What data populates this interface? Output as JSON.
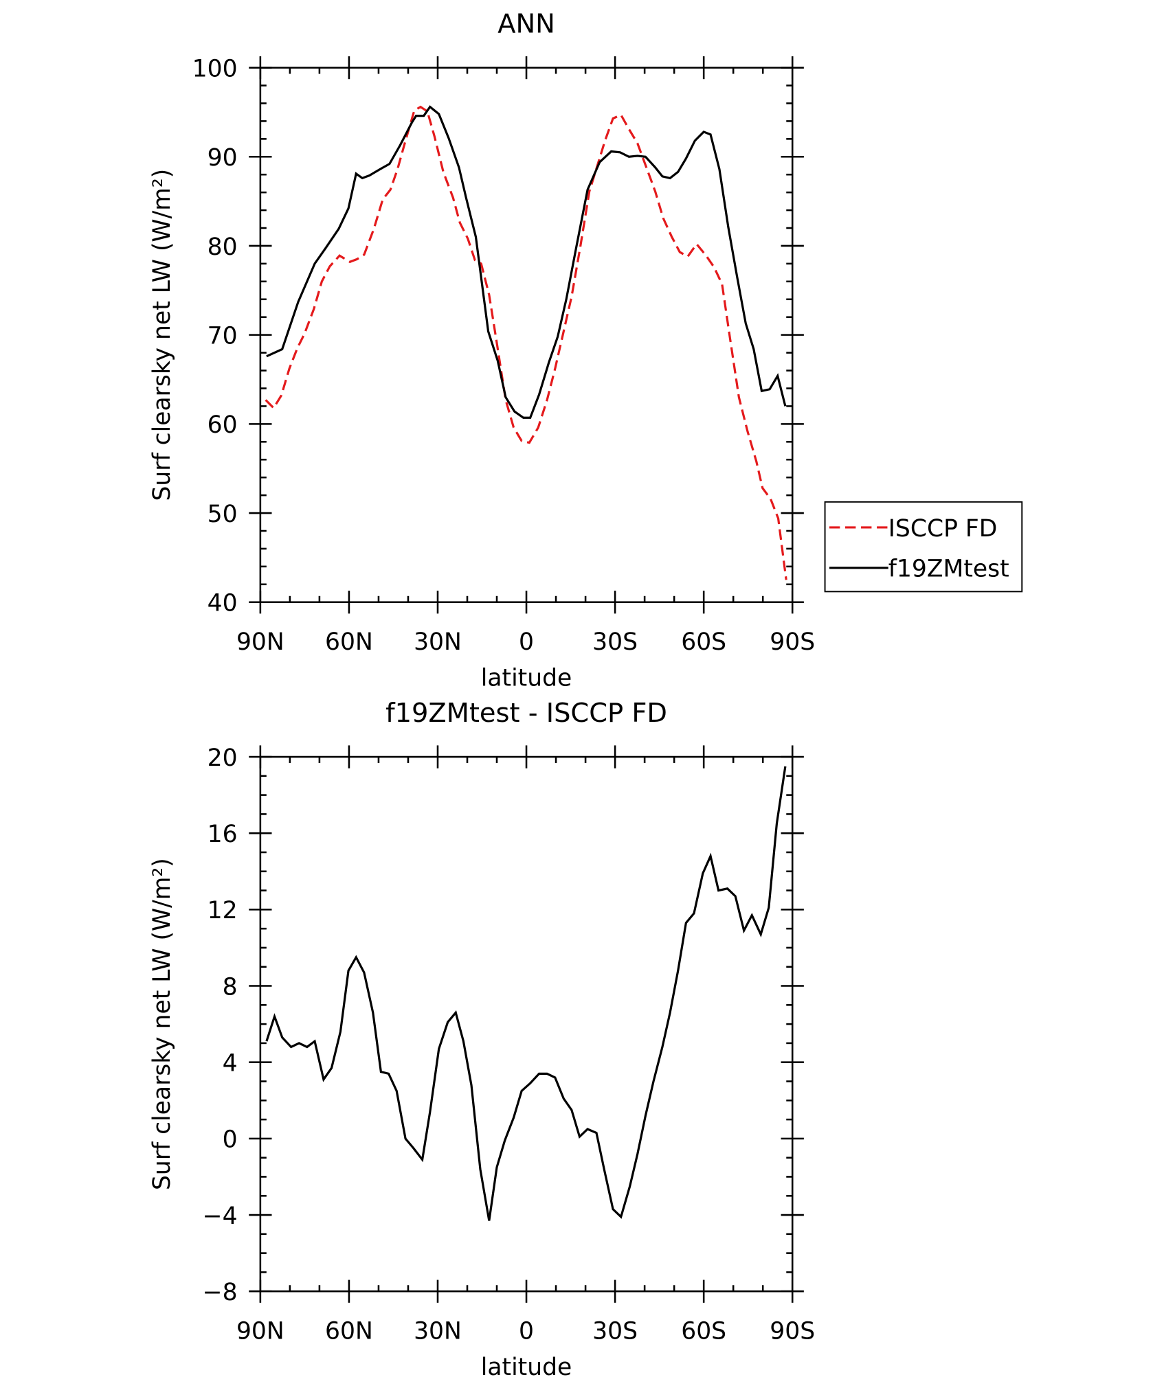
{
  "chart_data": [
    {
      "type": "line",
      "title": "ANN",
      "xlabel": "latitude",
      "ylabel": "Surf clearsky net LW (W/m²)",
      "xlim": [
        90,
        -90
      ],
      "xticks": [
        {
          "value": 90,
          "label": "90N"
        },
        {
          "value": 60,
          "label": "60N"
        },
        {
          "value": 30,
          "label": "30N"
        },
        0,
        {
          "value": -30,
          "label": "30S"
        },
        {
          "value": -60,
          "label": "60S"
        },
        {
          "value": -90,
          "label": "90S"
        }
      ],
      "ylim": [
        40,
        100
      ],
      "yticks": [
        40,
        50,
        60,
        70,
        80,
        90,
        100
      ],
      "legend": "right",
      "series": [
        {
          "name": "ISCCP FD",
          "color": "#e41a1c",
          "dash": true,
          "x": [
            88.2,
            85.5,
            82.9,
            80.2,
            77.5,
            75.1,
            71.9,
            69.2,
            66.5,
            63.2,
            59.7,
            57.3,
            54.9,
            51.6,
            48.6,
            46.0,
            43.6,
            40.9,
            37.9,
            35.8,
            33.5,
            31.1,
            28.1,
            24.8,
            22.5,
            19.8,
            17.4,
            15.3,
            12.6,
            10.0,
            7.0,
            4.3,
            1.6,
            -1.0,
            -4.0,
            -7.0,
            -9.7,
            -12.4,
            -15.3,
            -18.3,
            -21.3,
            -24.0,
            -26.6,
            -29.3,
            -32.0,
            -34.7,
            -37.6,
            -40.6,
            -43.6,
            -46.3,
            -49.2,
            -51.9,
            -54.6,
            -57.6,
            -60.8,
            -63.5,
            -66.2,
            -68.9,
            -71.9,
            -74.8,
            -77.8,
            -79.9,
            -82.6,
            -85.2,
            -87.9
          ],
          "values": [
            62.7,
            61.8,
            63.2,
            66.2,
            68.5,
            70.1,
            72.9,
            76.0,
            77.7,
            78.9,
            78.2,
            78.5,
            79.0,
            81.9,
            85.2,
            86.3,
            88.6,
            91.8,
            95.2,
            95.6,
            95.1,
            92.3,
            88.3,
            85.4,
            82.6,
            80.8,
            78.4,
            78.0,
            74.5,
            69.1,
            62.7,
            59.6,
            58.1,
            57.9,
            59.6,
            62.7,
            66.2,
            70.1,
            74.3,
            80.0,
            86.1,
            89.0,
            91.8,
            94.3,
            94.7,
            93.1,
            91.5,
            88.8,
            86.1,
            83.1,
            81.0,
            79.3,
            78.8,
            80.2,
            78.9,
            77.6,
            75.7,
            69.6,
            63.0,
            59.2,
            55.8,
            52.8,
            51.6,
            49.4,
            42.5
          ]
        },
        {
          "name": "f19ZMtest",
          "color": "#000000",
          "dash": false,
          "x": [
            87.9,
            82.6,
            77.2,
            71.6,
            68.0,
            63.5,
            60.2,
            57.6,
            55.5,
            53.1,
            49.5,
            46.3,
            42.7,
            38.8,
            37.3,
            34.7,
            32.6,
            29.6,
            26.3,
            22.8,
            20.4,
            17.1,
            12.9,
            9.7,
            7.0,
            4.0,
            1.0,
            -1.3,
            -4.3,
            -7.6,
            -10.6,
            -13.5,
            -16.8,
            -20.7,
            -24.8,
            -28.7,
            -31.7,
            -34.7,
            -37.6,
            -40.3,
            -43.6,
            -46.0,
            -48.6,
            -51.3,
            -54.0,
            -57.0,
            -60.0,
            -62.3,
            -65.3,
            -68.3,
            -71.3,
            -74.2,
            -76.9,
            -79.6,
            -82.3,
            -85.0,
            -87.6
          ],
          "values": [
            67.6,
            68.4,
            73.7,
            78.0,
            79.7,
            81.9,
            84.2,
            88.1,
            87.6,
            87.9,
            88.6,
            89.2,
            91.3,
            93.8,
            94.6,
            94.6,
            95.6,
            94.8,
            92.1,
            88.8,
            85.4,
            81.0,
            70.4,
            67.1,
            63.0,
            61.4,
            60.7,
            60.7,
            63.3,
            66.9,
            69.8,
            74.0,
            79.7,
            86.3,
            89.4,
            90.6,
            90.5,
            90.0,
            90.1,
            90.0,
            88.8,
            87.8,
            87.6,
            88.3,
            89.8,
            91.8,
            92.8,
            92.5,
            88.6,
            82.1,
            76.5,
            71.3,
            68.4,
            63.7,
            63.9,
            65.4,
            62.0
          ]
        }
      ]
    },
    {
      "type": "line",
      "title": "f19ZMtest - ISCCP FD",
      "xlabel": "latitude",
      "ylabel": "Surf clearsky net LW (W/m²)",
      "xlim": [
        90,
        -90
      ],
      "xticks": [
        {
          "value": 90,
          "label": "90N"
        },
        {
          "value": 60,
          "label": "60N"
        },
        {
          "value": 30,
          "label": "30N"
        },
        0,
        {
          "value": -30,
          "label": "30S"
        },
        {
          "value": -60,
          "label": "60S"
        },
        {
          "value": -90,
          "label": "90S"
        }
      ],
      "ylim": [
        -8,
        20
      ],
      "yticks": [
        {
          "value": -8,
          "label": "−8"
        },
        {
          "value": -4,
          "label": "−4"
        },
        0,
        4,
        8,
        12,
        16,
        20
      ],
      "series": [
        {
          "color": "#000000",
          "dash": false,
          "x": [
            87.9,
            85.2,
            82.6,
            79.6,
            76.9,
            74.2,
            71.6,
            68.6,
            65.9,
            62.9,
            60.2,
            57.6,
            54.9,
            51.9,
            49.2,
            46.6,
            43.9,
            40.9,
            38.2,
            35.2,
            32.6,
            29.6,
            26.6,
            23.9,
            21.3,
            18.6,
            15.6,
            12.6,
            10.0,
            7.3,
            4.3,
            1.6,
            -1.3,
            -4.3,
            -7.0,
            -9.7,
            -12.6,
            -15.3,
            -18.0,
            -20.7,
            -23.7,
            -26.3,
            -29.3,
            -32.0,
            -35.0,
            -37.6,
            -40.3,
            -43.0,
            -46.0,
            -48.6,
            -51.3,
            -54.0,
            -56.7,
            -59.7,
            -62.3,
            -65.0,
            -68.0,
            -70.7,
            -73.6,
            -76.3,
            -79.3,
            -82.0,
            -84.7,
            -87.6
          ],
          "values": [
            5.1,
            6.4,
            5.3,
            4.8,
            5.0,
            4.8,
            5.1,
            3.1,
            3.7,
            5.6,
            8.8,
            9.5,
            8.7,
            6.6,
            3.5,
            3.4,
            2.5,
            0.0,
            -0.5,
            -1.1,
            1.4,
            4.7,
            6.1,
            6.6,
            5.1,
            2.8,
            -1.6,
            -4.3,
            -1.5,
            -0.1,
            1.1,
            2.5,
            2.9,
            3.4,
            3.4,
            3.2,
            2.1,
            1.5,
            0.1,
            0.5,
            0.3,
            -1.6,
            -3.7,
            -4.1,
            -2.5,
            -0.8,
            1.2,
            3.0,
            4.8,
            6.6,
            8.8,
            11.3,
            11.8,
            13.9,
            14.8,
            13.0,
            13.1,
            12.7,
            10.9,
            11.7,
            10.7,
            12.1,
            16.5,
            19.5
          ]
        }
      ]
    }
  ]
}
